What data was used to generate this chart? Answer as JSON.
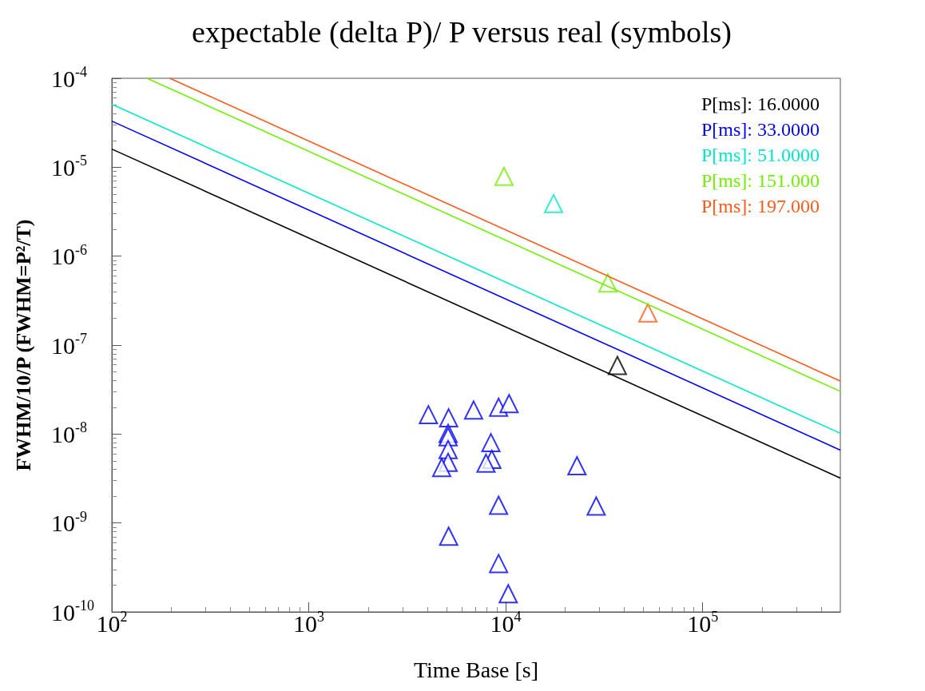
{
  "chart_data": {
    "type": "scatter",
    "title": "expectable (delta P)/ P versus real (symbols)",
    "xlabel": "Time Base [s]",
    "ylabel": "FWHM/10/P (FWHM=P²/T)",
    "log": "xy",
    "grid": false,
    "legend": "top right",
    "marker": "triangle",
    "xlim": [
      100,
      500000
    ],
    "ylim": [
      1e-10,
      0.0001
    ],
    "xticks": [
      {
        "value": 100,
        "label": "10$^{2}$"
      },
      {
        "value": 1000,
        "label": "10$^{3}$"
      },
      {
        "value": 10000,
        "label": "10$^{4}$"
      },
      {
        "value": 100000,
        "label": "10$^{5}$"
      }
    ],
    "yticks": [
      {
        "value": 1e-10,
        "label": "10$^{-10}$"
      },
      {
        "value": 1e-09,
        "label": "10$^{-9}$"
      },
      {
        "value": 1e-08,
        "label": "10$^{-8}$"
      },
      {
        "value": 1e-07,
        "label": "10$^{-7}$"
      },
      {
        "value": 1e-06,
        "label": "10$^{-6}$"
      },
      {
        "value": 1e-05,
        "label": "10$^{-5}$"
      },
      {
        "value": 0.0001,
        "label": "10$^{-4}$"
      }
    ],
    "series": [
      {
        "type": "line",
        "marker": "none",
        "name": "P[ms]: 16.0000",
        "color": "#000000",
        "x": [
          100,
          500000
        ],
        "values": [
          1.6e-05,
          3.2e-09
        ]
      },
      {
        "type": "line",
        "marker": "none",
        "name": "P[ms]: 33.0000",
        "color": "#0000ff",
        "x": [
          100,
          500000
        ],
        "values": [
          3.3e-05,
          6.6e-09
        ]
      },
      {
        "type": "line",
        "marker": "none",
        "name": "P[ms]: 51.0000",
        "color": "#00e8c8",
        "x": [
          100,
          500000
        ],
        "values": [
          5.1e-05,
          1.02e-08
        ]
      },
      {
        "type": "line",
        "marker": "none",
        "name": "P[ms]: 151.000",
        "color": "#70f000",
        "x": [
          151,
          500000
        ],
        "values": [
          0.0001,
          3.02e-08
        ]
      },
      {
        "type": "line",
        "marker": "none",
        "name": "P[ms]: 197.000",
        "color": "#ff5a1a",
        "x": [
          197,
          500000
        ],
        "values": [
          0.0001,
          3.94e-08
        ]
      },
      {
        "type": "scatter",
        "color": "#000000",
        "x": [
          36900
        ],
        "values": [
          5.9e-08
        ]
      },
      {
        "type": "scatter",
        "color": "#0000ff",
        "x": [
          4050,
          5130,
          5100,
          5100,
          5100,
          5100,
          4730,
          6870,
          9200,
          10400,
          8410,
          8500,
          7940,
          23000,
          9200,
          28800,
          5130,
          9200,
          10300
        ],
        "values": [
          1.65e-08,
          1.52e-08,
          1.02e-08,
          9.3e-09,
          6.7e-09,
          4.8e-09,
          4.2e-09,
          1.86e-08,
          2e-08,
          2.2e-08,
          8e-09,
          5.2e-09,
          4.7e-09,
          4.4e-09,
          1.58e-09,
          1.55e-09,
          7.1e-10,
          3.5e-10,
          1.6e-10
        ]
      },
      {
        "type": "scatter",
        "color": "#00e8c8",
        "x": [
          17500
        ],
        "values": [
          3.9e-06
        ]
      },
      {
        "type": "scatter",
        "color": "#70f000",
        "x": [
          9800,
          33000
        ],
        "values": [
          7.9e-06,
          5e-07
        ]
      },
      {
        "type": "scatter",
        "color": "#ff5a1a",
        "x": [
          52700
        ],
        "values": [
          2.3e-07
        ]
      }
    ]
  }
}
